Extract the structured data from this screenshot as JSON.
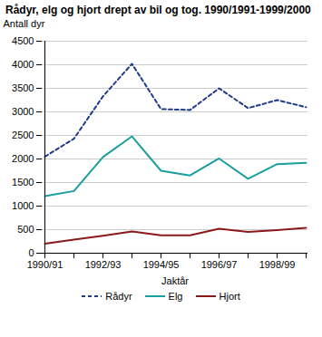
{
  "chart_data": {
    "type": "line",
    "title": "Rådyr, elg og hjort drept av bil og tog. 1990/1991-1999/2000",
    "x_label": "Jaktår",
    "y_label": "Antall dyr",
    "categories": [
      "1990/91",
      null,
      "1992/93",
      null,
      "1994/95",
      null,
      "1996/97",
      null,
      "1998/99",
      null
    ],
    "series": [
      {
        "name": "Rådyr",
        "color": "#1f3c8c",
        "line_style": "dashed",
        "values": [
          2050,
          2430,
          3330,
          4020,
          3060,
          3040,
          3500,
          3080,
          3250,
          3100
        ]
      },
      {
        "name": "Elg",
        "color": "#1a9e9e",
        "line_style": "solid",
        "values": [
          1210,
          1320,
          2040,
          2480,
          1750,
          1650,
          2010,
          1580,
          1890,
          1920
        ]
      },
      {
        "name": "Hjort",
        "color": "#8b1a1a",
        "line_style": "solid",
        "values": [
          200,
          290,
          370,
          460,
          380,
          380,
          520,
          450,
          490,
          540
        ]
      }
    ],
    "ylim": [
      0,
      4500
    ],
    "yticks": [
      0,
      500,
      1000,
      1500,
      2000,
      2500,
      3000,
      3500,
      4000,
      4500
    ],
    "grid": true,
    "legend": "bottom"
  }
}
